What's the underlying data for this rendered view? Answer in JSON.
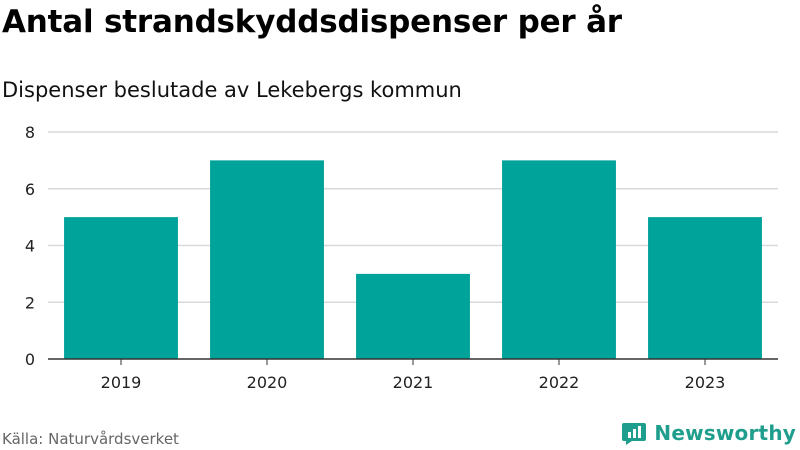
{
  "title": "Antal strandskyddsdispenser per år",
  "subtitle": "Dispenser beslutade av Lekebergs kommun",
  "source": "Källa: Naturvårdsverket",
  "brand": {
    "name": "Newsworthy",
    "color": "#1f9e8e",
    "icon": "newsworthy-logo-icon"
  },
  "colors": {
    "bar": "#00a39a",
    "grid": "#d9d9d9",
    "axis": "#333333",
    "tick_text": "#222222"
  },
  "chart_data": {
    "type": "bar",
    "title": "Antal strandskyddsdispenser per år",
    "subtitle": "Dispenser beslutade av Lekebergs kommun",
    "xlabel": "",
    "ylabel": "",
    "categories": [
      "2019",
      "2020",
      "2021",
      "2022",
      "2023"
    ],
    "values": [
      5,
      7,
      3,
      7,
      5
    ],
    "ylim": [
      0,
      8
    ],
    "yticks": [
      0,
      2,
      4,
      6,
      8
    ],
    "grid": true,
    "legend": false
  }
}
